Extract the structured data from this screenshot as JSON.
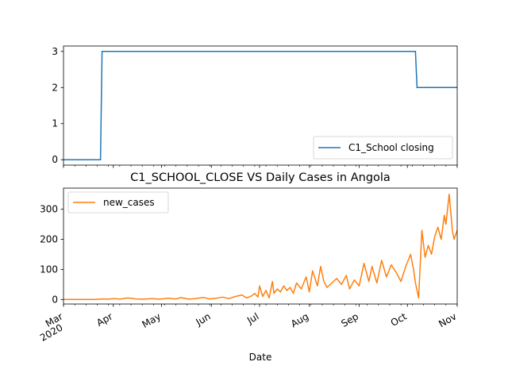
{
  "chart_data": [
    {
      "type": "line",
      "title": "",
      "xlabel": "",
      "ylabel": "",
      "xlim": [
        "2020-03-01",
        "2020-11-01"
      ],
      "ylim": [
        -0.15,
        3.15
      ],
      "yticks": [
        0,
        1,
        2,
        3
      ],
      "grid": false,
      "legend_position": "lower-right",
      "series": [
        {
          "name": "C1_School closing",
          "color": "#1f77b4",
          "step": true,
          "x": [
            "2020-03-01",
            "2020-03-24",
            "2020-03-25",
            "2020-10-06",
            "2020-10-07",
            "2020-11-01"
          ],
          "y": [
            0,
            0,
            3,
            3,
            2,
            2
          ]
        }
      ]
    },
    {
      "type": "line",
      "title": "C1_SCHOOL_CLOSE VS Daily Cases in Angola",
      "xlabel": "Date",
      "ylabel": "",
      "xlim": [
        "2020-03-01",
        "2020-11-01"
      ],
      "ylim": [
        -15,
        370
      ],
      "yticks": [
        0,
        100,
        200,
        300
      ],
      "xticks": [
        "Mar\n2020",
        "Apr",
        "May",
        "Jun",
        "Jul",
        "Aug",
        "Sep",
        "Oct",
        "Nov"
      ],
      "grid": false,
      "legend_position": "upper-left",
      "series": [
        {
          "name": "new_cases",
          "color": "#ff7f0e",
          "x": [
            "2020-03-01",
            "2020-03-21",
            "2020-03-25",
            "2020-03-28",
            "2020-04-02",
            "2020-04-05",
            "2020-04-10",
            "2020-04-15",
            "2020-04-20",
            "2020-04-25",
            "2020-04-30",
            "2020-05-05",
            "2020-05-10",
            "2020-05-13",
            "2020-05-18",
            "2020-05-22",
            "2020-05-27",
            "2020-05-31",
            "2020-06-04",
            "2020-06-08",
            "2020-06-12",
            "2020-06-16",
            "2020-06-20",
            "2020-06-23",
            "2020-06-26",
            "2020-06-28",
            "2020-06-30",
            "2020-07-01",
            "2020-07-03",
            "2020-07-05",
            "2020-07-07",
            "2020-07-09",
            "2020-07-10",
            "2020-07-12",
            "2020-07-14",
            "2020-07-16",
            "2020-07-18",
            "2020-07-20",
            "2020-07-22",
            "2020-07-24",
            "2020-07-27",
            "2020-07-30",
            "2020-08-01",
            "2020-08-03",
            "2020-08-06",
            "2020-08-08",
            "2020-08-10",
            "2020-08-12",
            "2020-08-15",
            "2020-08-18",
            "2020-08-21",
            "2020-08-24",
            "2020-08-26",
            "2020-08-29",
            "2020-09-01",
            "2020-09-04",
            "2020-09-07",
            "2020-09-09",
            "2020-09-12",
            "2020-09-15",
            "2020-09-18",
            "2020-09-21",
            "2020-09-24",
            "2020-09-27",
            "2020-09-30",
            "2020-10-03",
            "2020-10-05",
            "2020-10-06",
            "2020-10-07",
            "2020-10-08",
            "2020-10-10",
            "2020-10-12",
            "2020-10-14",
            "2020-10-16",
            "2020-10-18",
            "2020-10-20",
            "2020-10-22",
            "2020-10-24",
            "2020-10-25",
            "2020-10-27",
            "2020-10-29",
            "2020-10-30",
            "2020-11-01"
          ],
          "y": [
            0,
            0,
            2,
            1,
            3,
            1,
            5,
            2,
            1,
            3,
            1,
            4,
            2,
            6,
            1,
            3,
            7,
            2,
            4,
            8,
            3,
            10,
            15,
            5,
            12,
            20,
            8,
            45,
            10,
            30,
            5,
            60,
            20,
            35,
            25,
            45,
            30,
            40,
            20,
            55,
            35,
            75,
            25,
            95,
            45,
            110,
            60,
            40,
            55,
            70,
            50,
            80,
            35,
            65,
            45,
            120,
            60,
            110,
            55,
            130,
            75,
            115,
            90,
            60,
            110,
            150,
            95,
            55,
            30,
            5,
            230,
            140,
            180,
            150,
            210,
            240,
            200,
            280,
            250,
            350,
            230,
            200,
            230
          ]
        }
      ]
    }
  ]
}
